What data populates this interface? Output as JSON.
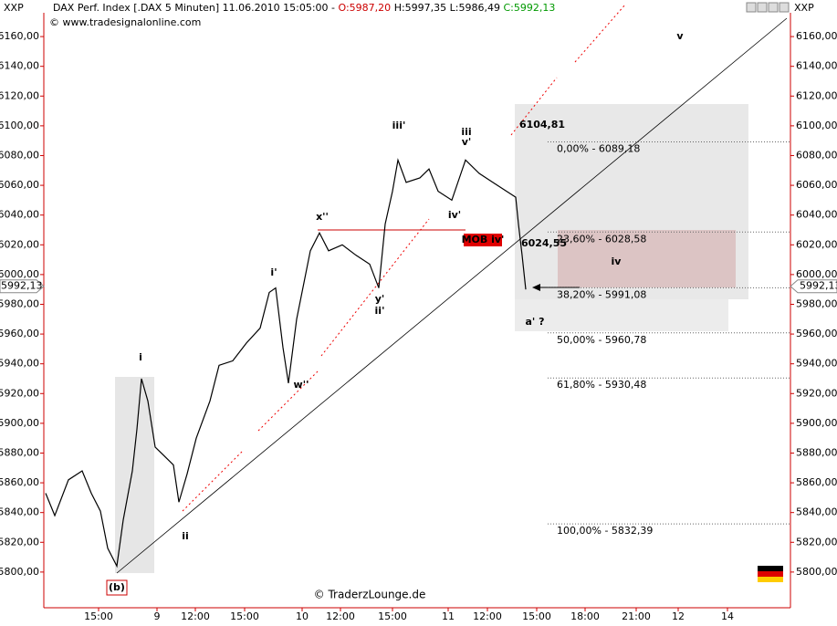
{
  "header": {
    "corner_left": "XXP",
    "corner_right": "XXP",
    "instrument": "DAX Perf. Index [.DAX  5 Minuten] 11.06.2010 15:05:00 -",
    "open": "O:5987,20",
    "high_low": "H:5997,35 L:5986,49",
    "close": "C:5992,13",
    "source": "© www.tradesignalonline.com",
    "watermark": "© TraderzLounge.de"
  },
  "chart_data": {
    "type": "line",
    "color": "#000000",
    "x": [
      2,
      12,
      27,
      42,
      52,
      62,
      70,
      80,
      87,
      97,
      102,
      107,
      114,
      122,
      132,
      142,
      148,
      157,
      167,
      182,
      192,
      207,
      222,
      237,
      247,
      254,
      262,
      268,
      277,
      292,
      302,
      312,
      327,
      342,
      357,
      367,
      374,
      382,
      388,
      397,
      412,
      422,
      432,
      447,
      462,
      477,
      492,
      507,
      517,
      520,
      524,
      528
    ],
    "values": [
      5853,
      5838,
      5862,
      5868,
      5853,
      5841,
      5816,
      5804,
      5835,
      5868,
      5896,
      5930,
      5915,
      5884,
      5878,
      5872,
      5847,
      5866,
      5890,
      5915,
      5939,
      5942,
      5954,
      5964,
      5988,
      5991,
      5951,
      5927,
      5970,
      6016,
      6028,
      6016,
      6020,
      6013,
      6007,
      5991,
      6034,
      6056,
      6077,
      6062,
      6065,
      6071,
      6056,
      6050,
      6077,
      6068,
      6062,
      6056,
      6052,
      6034,
      6013,
      5990
    ],
    "xlim": [
      0,
      818
    ],
    "ylim": [
      5776,
      6176
    ],
    "xticks": [
      {
        "value": 60,
        "label": "15:00"
      },
      {
        "value": 124,
        "label": "9"
      },
      {
        "value": 166,
        "label": "12:00"
      },
      {
        "value": 220,
        "label": "15:00"
      },
      {
        "value": 283,
        "label": "10"
      },
      {
        "value": 325,
        "label": "12:00"
      },
      {
        "value": 382,
        "label": "15:00"
      },
      {
        "value": 443,
        "label": "11"
      },
      {
        "value": 486,
        "label": "12:00"
      },
      {
        "value": 540,
        "label": "15:00"
      },
      {
        "value": 593,
        "label": "18:00"
      },
      {
        "value": 649,
        "label": "21:00"
      },
      {
        "value": 695,
        "label": "12"
      },
      {
        "value": 749,
        "label": "14"
      }
    ],
    "yticks": [
      {
        "value": 5800,
        "label": "5800,00"
      },
      {
        "value": 5820,
        "label": "5820,00"
      },
      {
        "value": 5840,
        "label": "5840,00"
      },
      {
        "value": 5860,
        "label": "5860,00"
      },
      {
        "value": 5880,
        "label": "5880,00"
      },
      {
        "value": 5900,
        "label": "5900,00"
      },
      {
        "value": 5920,
        "label": "5920,00"
      },
      {
        "value": 5940,
        "label": "5940,00"
      },
      {
        "value": 5960,
        "label": "5960,00"
      },
      {
        "value": 5980,
        "label": "5980,00"
      },
      {
        "value": 6000,
        "label": "6000,00"
      },
      {
        "value": 6020,
        "label": "6020,00"
      },
      {
        "value": 6040,
        "label": "6040,00"
      },
      {
        "value": 6060,
        "label": "6060,00"
      },
      {
        "value": 6080,
        "label": "6080,00"
      },
      {
        "value": 6100,
        "label": "6100,00"
      },
      {
        "value": 6120,
        "label": "6120,00"
      },
      {
        "value": 6140,
        "label": "6140,00"
      },
      {
        "value": 6160,
        "label": "6160,00"
      }
    ],
    "last_price": {
      "value": 5992.13,
      "label": "5992,13"
    },
    "fib_levels": [
      {
        "value": 6089.18,
        "label": "0,00% - 6089,18"
      },
      {
        "value": 6028.58,
        "label": "23,60% - 6028,58"
      },
      {
        "value": 5991.08,
        "label": "38,20% - 5991,08"
      },
      {
        "value": 5960.78,
        "label": "50,00% - 5960,78"
      },
      {
        "value": 5930.48,
        "label": "61,80% - 5930,48"
      },
      {
        "value": 5832.39,
        "label": "100,00% - 5832,39"
      }
    ],
    "annotations": [
      {
        "text": "i",
        "color": "#cc0000"
      },
      {
        "text": "ii",
        "color": "#cc0000"
      },
      {
        "text": "iii",
        "color": "#cc0000"
      },
      {
        "text": "iv",
        "color": "#cc0000"
      },
      {
        "text": "v",
        "color": "#cc0000"
      },
      {
        "text": "i'",
        "color": "#1a1a6e"
      },
      {
        "text": "ii'",
        "color": "#1a1a6e"
      },
      {
        "text": "iii'",
        "color": "#1a1a6e"
      },
      {
        "text": "iv'",
        "color": "#1a1a6e"
      },
      {
        "text": "v'",
        "color": "#1a1a6e"
      },
      {
        "text": "a' ?",
        "color": "#1a1a6e"
      },
      {
        "text": "x''",
        "color": "#e08a00"
      },
      {
        "text": "w''",
        "color": "#e08a00"
      },
      {
        "text": "y'",
        "color": "#e08a00"
      },
      {
        "text": "(b)",
        "color": "#cc0000"
      },
      {
        "text": "6104,81",
        "color": "#cc0000"
      },
      {
        "text": "6024,55",
        "color": "#333333"
      },
      {
        "text": "MOB iv'",
        "color": "#ffffff"
      }
    ]
  }
}
